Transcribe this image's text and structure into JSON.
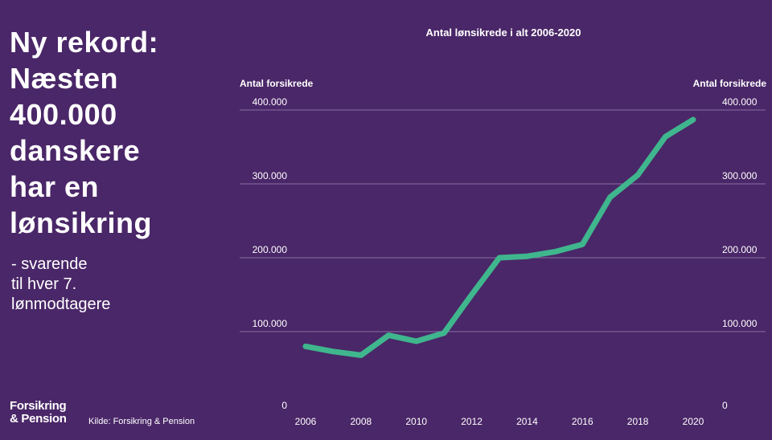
{
  "headline": "Ny rekord:\nNæsten\n400.000\ndanskere\nhar en\nlønsikring",
  "subline": "- svarende\ntil hver 7.\nlønmodtagere",
  "logo": "Forsikring\n& Pension",
  "source": "Kilde: Forsikring & Pension",
  "colors": {
    "background": "#4a2768",
    "line": "#3fb68d",
    "grid": "#8a6fa4"
  },
  "chart_data": {
    "type": "line",
    "title": "Antal lønsikrede i alt 2006-2020",
    "ylabel_left": "Antal forsikrede",
    "ylabel_right": "Antal forsikrede",
    "xlabel": "",
    "xlim": [
      2006,
      2020
    ],
    "ylim": [
      0,
      400000
    ],
    "x_ticks": [
      2006,
      2008,
      2010,
      2012,
      2014,
      2016,
      2018,
      2020
    ],
    "x_tick_labels": [
      "2006",
      "2008",
      "2010",
      "2012",
      "2014",
      "2016",
      "2018",
      "2020"
    ],
    "y_ticks": [
      0,
      100000,
      200000,
      300000,
      400000
    ],
    "y_tick_labels": [
      "0",
      "100.000",
      "200.000",
      "300.000",
      "400.000"
    ],
    "series": [
      {
        "name": "Antal lønsikrede",
        "x": [
          2006,
          2007,
          2008,
          2009,
          2010,
          2011,
          2012,
          2013,
          2014,
          2015,
          2016,
          2017,
          2018,
          2019,
          2020
        ],
        "values": [
          80000,
          73000,
          68000,
          95000,
          87000,
          98000,
          150000,
          200000,
          202000,
          208000,
          218000,
          282000,
          312000,
          364000,
          387000
        ]
      }
    ],
    "grid": true
  }
}
